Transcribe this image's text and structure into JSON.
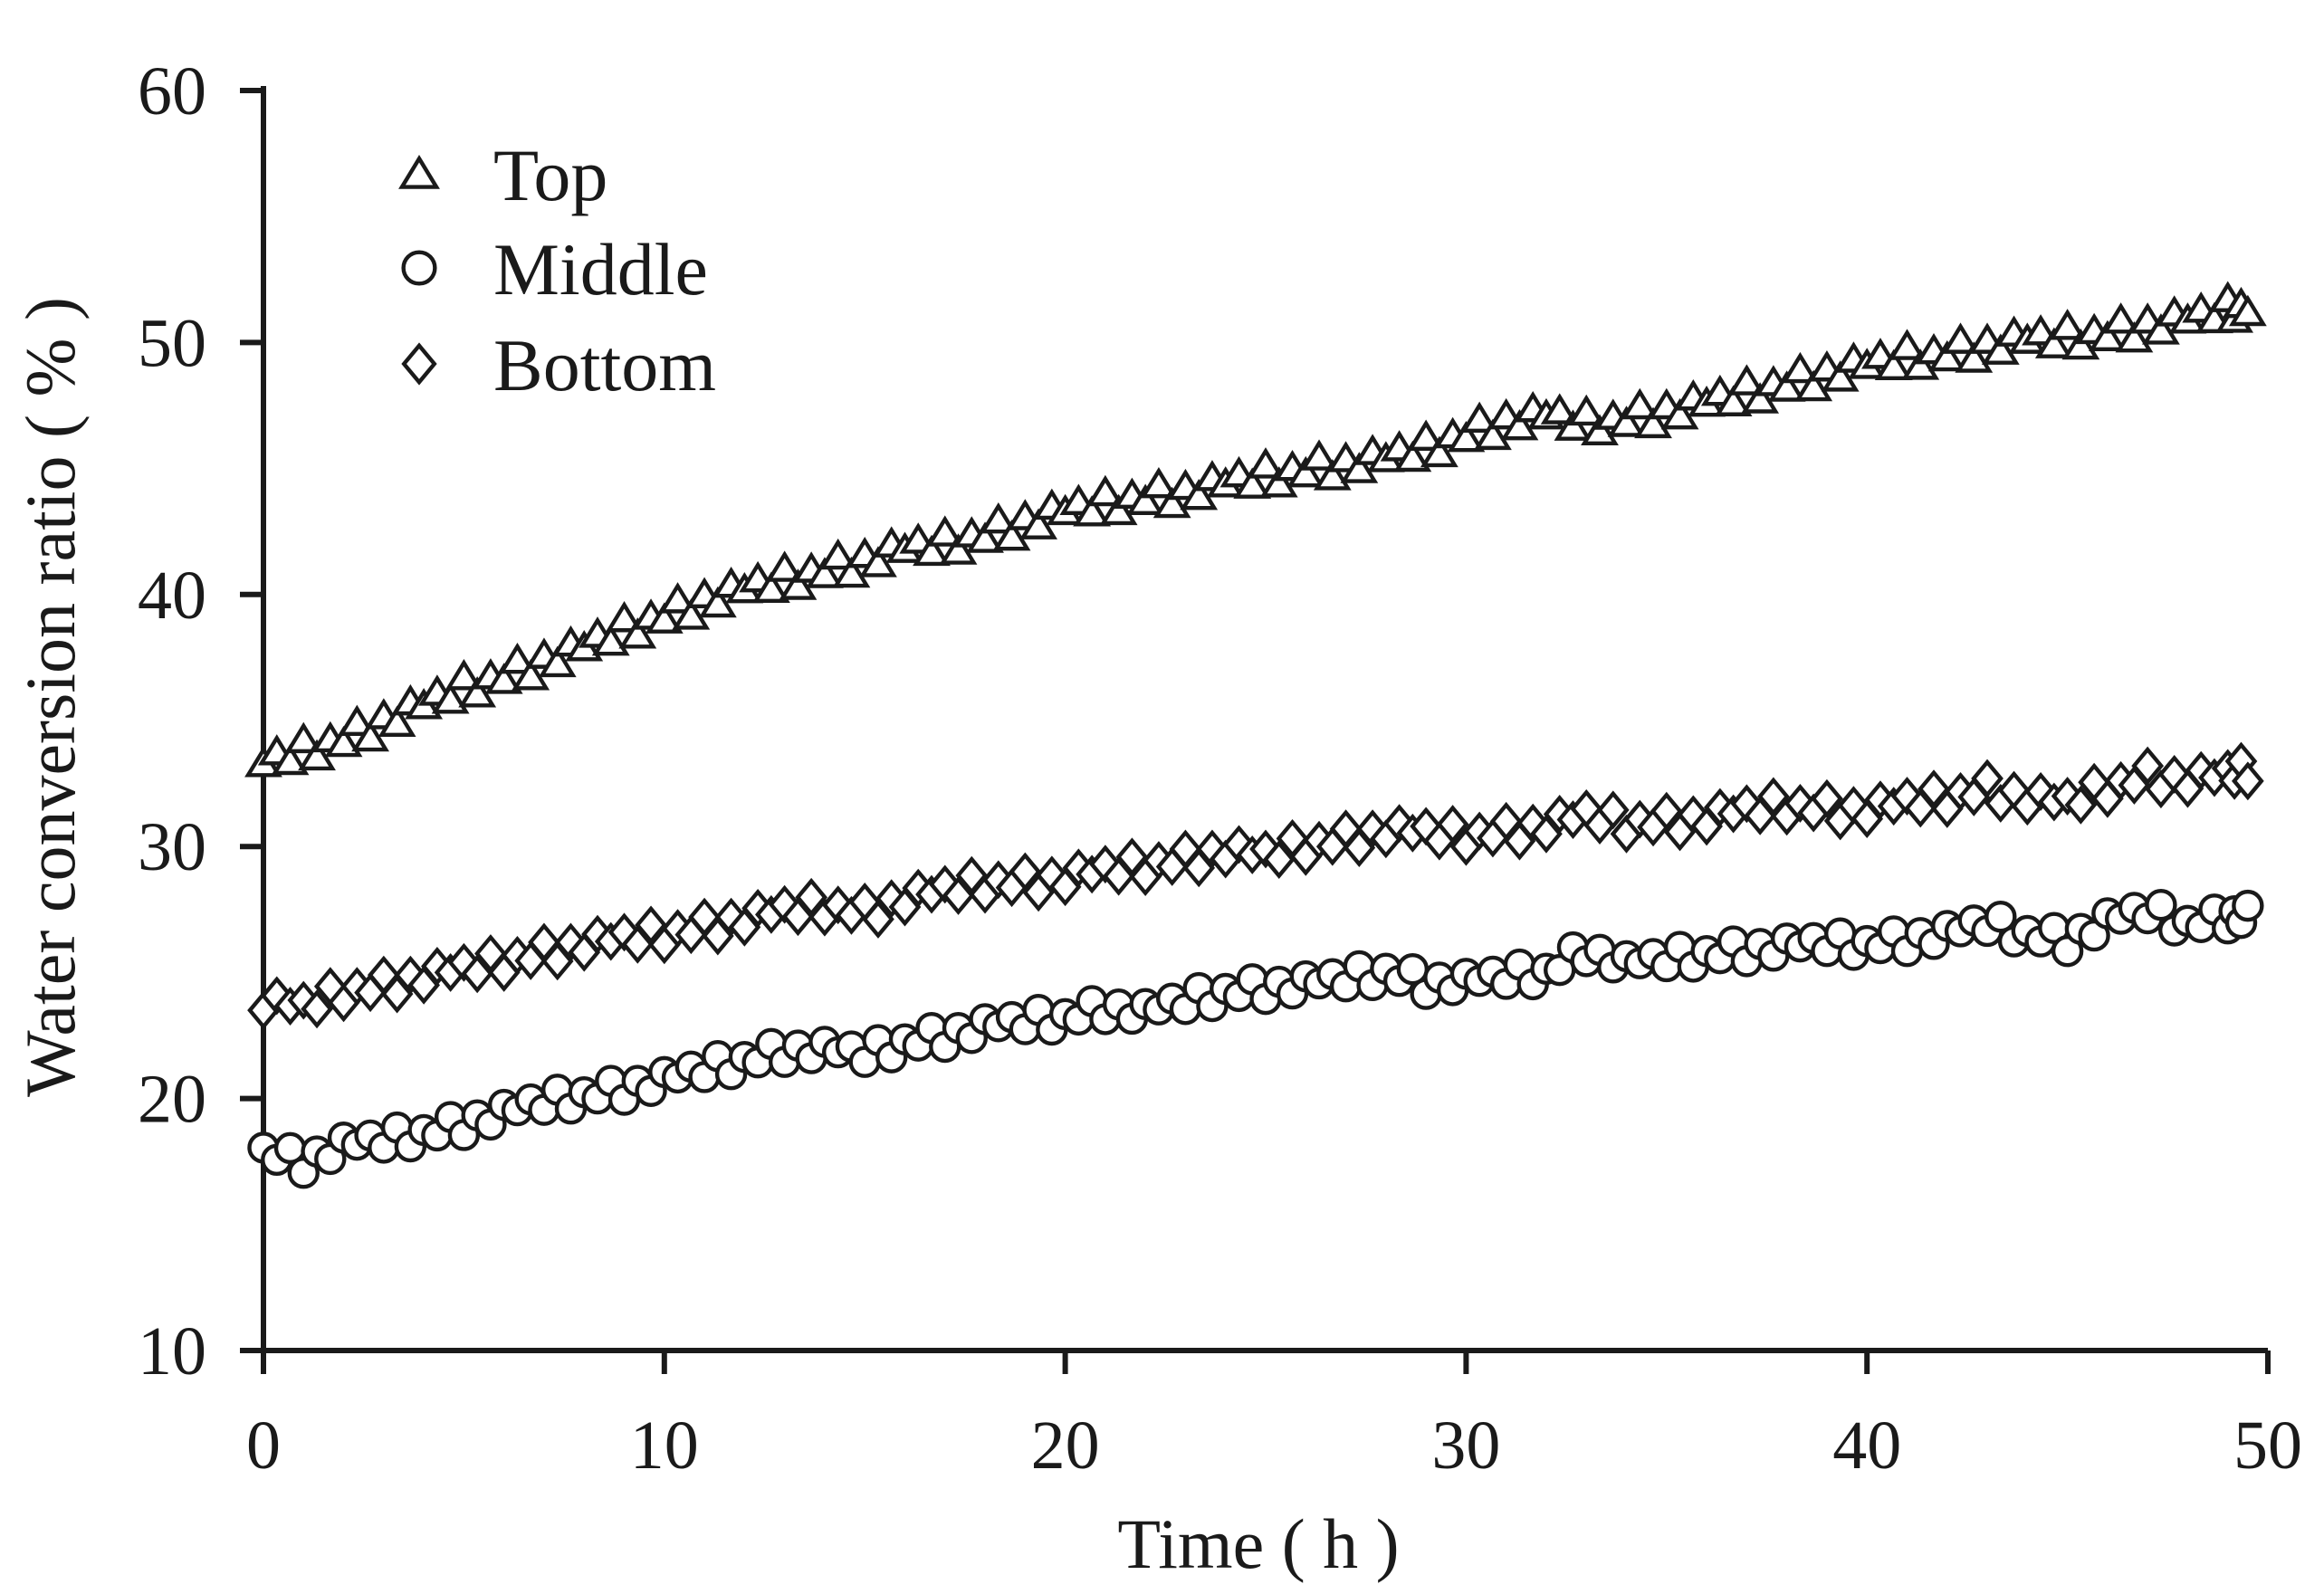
{
  "page": {
    "background": "#ffffff",
    "ink": "#1a1a1a"
  },
  "legend": {
    "items": [
      {
        "marker": "triangle",
        "label": "Top"
      },
      {
        "marker": "circle",
        "label": "Middle"
      },
      {
        "marker": "diamond",
        "label": "Bottom"
      }
    ]
  },
  "chart_data": {
    "type": "scatter",
    "title": "",
    "xlabel": "Time ( h )",
    "ylabel": "Water conversion ratio ( % )",
    "xlim": [
      0,
      50
    ],
    "ylim": [
      10,
      60
    ],
    "x_ticks": [
      0,
      10,
      20,
      30,
      40,
      50
    ],
    "y_ticks": [
      10,
      20,
      30,
      40,
      50,
      60
    ],
    "grid": false,
    "legend_position": "top-left-inside",
    "marker_style": "open-black-outline",
    "series": [
      {
        "name": "Top",
        "marker": "triangle",
        "x": [
          0,
          1,
          2,
          3,
          4,
          5,
          6,
          7,
          8,
          9,
          10,
          11,
          12,
          13,
          14,
          15,
          16,
          17,
          18,
          19,
          20,
          21,
          22,
          23,
          24,
          25,
          26,
          27,
          28,
          29,
          30,
          31,
          32,
          33,
          34,
          35,
          36,
          37,
          38,
          39,
          40,
          41,
          42,
          43,
          44,
          45,
          46,
          47,
          48,
          49,
          49.5
        ],
        "y": [
          33.3,
          33.8,
          34.3,
          35.0,
          35.6,
          36.3,
          36.8,
          37.4,
          37.9,
          38.6,
          39.2,
          39.8,
          40.2,
          40.6,
          41.0,
          41.4,
          41.8,
          42.0,
          42.4,
          42.9,
          43.3,
          43.6,
          43.9,
          44.1,
          44.4,
          44.7,
          45.0,
          45.2,
          45.4,
          45.8,
          46.4,
          46.9,
          47.1,
          46.8,
          47.0,
          47.3,
          47.6,
          48.0,
          48.4,
          48.8,
          49.1,
          49.4,
          49.6,
          49.9,
          50.1,
          50.2,
          50.4,
          50.7,
          50.9,
          51.3,
          51.4
        ]
      },
      {
        "name": "Middle",
        "marker": "circle",
        "x": [
          0,
          1,
          2,
          3,
          4,
          5,
          6,
          7,
          8,
          9,
          10,
          11,
          12,
          13,
          14,
          15,
          16,
          17,
          18,
          19,
          20,
          21,
          22,
          23,
          24,
          25,
          26,
          27,
          28,
          29,
          30,
          31,
          32,
          33,
          34,
          35,
          36,
          37,
          38,
          39,
          40,
          41,
          42,
          43,
          44,
          45,
          46,
          47,
          48,
          49,
          49.5
        ],
        "y": [
          17.9,
          17.5,
          18.1,
          18.3,
          18.6,
          19.0,
          19.4,
          19.8,
          20.1,
          20.4,
          20.7,
          21.1,
          21.5,
          21.9,
          21.9,
          21.7,
          22.2,
          22.5,
          22.8,
          23.0,
          23.2,
          23.6,
          23.4,
          23.8,
          24.2,
          24.4,
          24.5,
          24.7,
          25.0,
          24.6,
          24.6,
          24.8,
          25.0,
          25.9,
          25.3,
          25.5,
          25.7,
          25.9,
          26.0,
          26.1,
          26.1,
          26.3,
          26.5,
          26.9,
          26.5,
          26.3,
          27.0,
          27.4,
          26.9,
          27.2,
          27.3
        ]
      },
      {
        "name": "Bottom",
        "marker": "diamond",
        "x": [
          0,
          1,
          2,
          3,
          4,
          5,
          6,
          7,
          8,
          9,
          10,
          11,
          12,
          13,
          14,
          15,
          16,
          17,
          18,
          19,
          20,
          21,
          22,
          23,
          24,
          25,
          26,
          27,
          28,
          29,
          30,
          31,
          32,
          33,
          34,
          35,
          36,
          37,
          38,
          39,
          40,
          41,
          42,
          43,
          44,
          45,
          46,
          47,
          48,
          49,
          49.5
        ],
        "y": [
          23.8,
          23.6,
          24.2,
          24.5,
          24.8,
          25.1,
          25.4,
          25.8,
          26.1,
          26.3,
          26.5,
          26.8,
          27.1,
          27.4,
          27.6,
          27.4,
          27.9,
          28.2,
          28.5,
          28.6,
          28.7,
          29.0,
          29.2,
          29.5,
          29.8,
          29.6,
          30.0,
          30.3,
          30.6,
          30.5,
          30.4,
          30.6,
          30.8,
          31.2,
          30.9,
          31.0,
          31.1,
          31.4,
          31.6,
          31.5,
          31.4,
          31.7,
          31.9,
          32.3,
          31.9,
          31.7,
          32.3,
          32.8,
          32.6,
          32.8,
          33.0
        ]
      }
    ],
    "render": {
      "subpoints_per_interval": 3,
      "jitter_cycle": [
        0,
        0.3,
        -0.25,
        0.45,
        -0.4,
        0.15,
        -0.2,
        0.4,
        -0.45,
        0.2,
        -0.3,
        0.35
      ]
    }
  }
}
